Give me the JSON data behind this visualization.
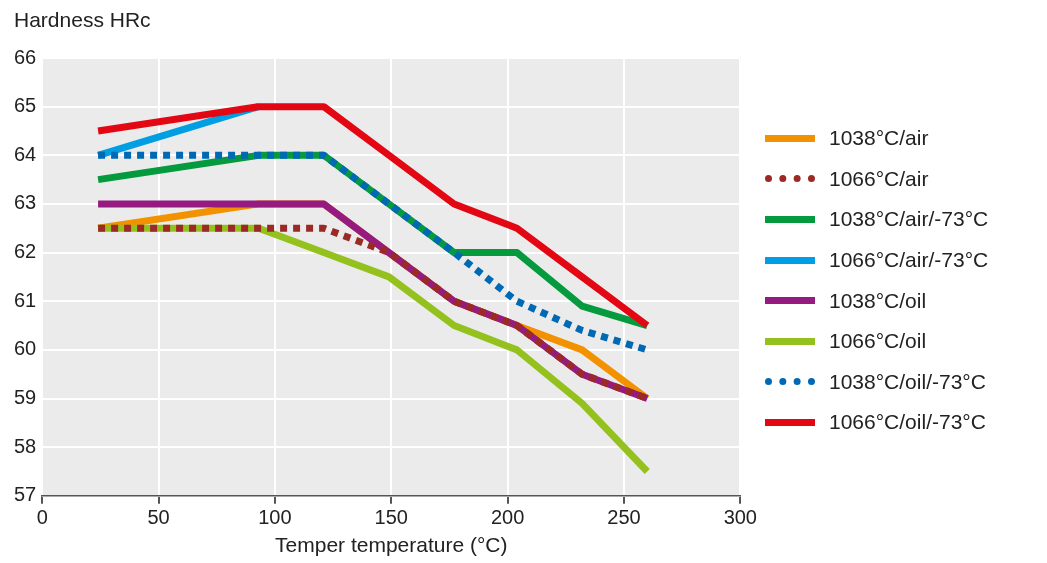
{
  "chart_data": {
    "type": "line",
    "ylabel": "Hardness HRc",
    "xlabel": "Temper temperature (°C)",
    "x": [
      24,
      93,
      121,
      149,
      177,
      204,
      232,
      260
    ],
    "xlim": [
      0,
      300
    ],
    "xticks": [
      0,
      50,
      100,
      150,
      200,
      250,
      300
    ],
    "ylim": [
      57,
      66
    ],
    "yticks": [
      57,
      58,
      59,
      60,
      61,
      62,
      63,
      64,
      65,
      66
    ],
    "grid": true,
    "legend": "right",
    "marker": "none",
    "series": [
      {
        "name": "1038°C/air",
        "color": "#f39200",
        "values": [
          62.5,
          63,
          63,
          62,
          61,
          60.5,
          60,
          59
        ]
      },
      {
        "name": "1066°C/air",
        "color": "#9b2a26",
        "line_style": "dotted",
        "values": [
          62.5,
          62.5,
          62.5,
          62,
          61,
          60.5,
          59.5,
          59
        ]
      },
      {
        "name": "1038°C/air/-73°C",
        "color": "#069a3e",
        "values": [
          63.5,
          64,
          64,
          63,
          62,
          62,
          60.9,
          60.5
        ]
      },
      {
        "name": "1066°C/air/-73°C",
        "color": "#009fe3",
        "values": [
          64,
          65,
          null,
          null,
          null,
          null,
          null,
          null
        ]
      },
      {
        "name": "1038°C/oil",
        "color": "#951b81",
        "values": [
          63,
          63,
          63,
          62,
          61,
          60.5,
          59.5,
          59
        ]
      },
      {
        "name": "1066°C/oil",
        "color": "#95c11f",
        "values": [
          62.5,
          62.5,
          62,
          61.5,
          60.5,
          60,
          58.9,
          57.5
        ]
      },
      {
        "name": "1038°C/oil/-73°C",
        "color": "#0069b4",
        "line_style": "dotted",
        "values": [
          64,
          64,
          64,
          63,
          62,
          61,
          60.4,
          60
        ]
      },
      {
        "name": "1066°C/oil/-73°C",
        "color": "#e30613",
        "values": [
          64.5,
          65,
          65,
          64,
          63,
          62.5,
          61.5,
          60.5
        ]
      }
    ]
  }
}
